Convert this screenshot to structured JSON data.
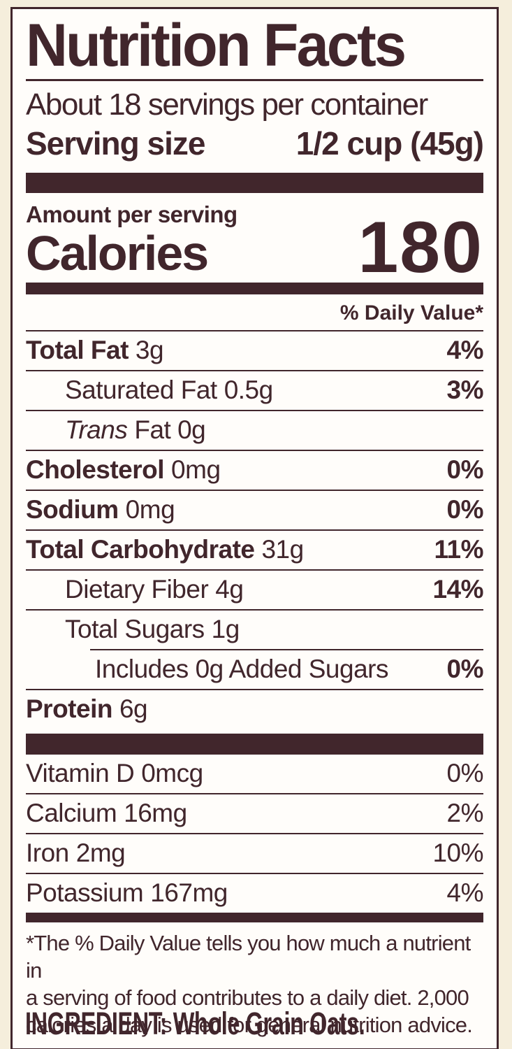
{
  "colors": {
    "page_bg": "#f5eedc",
    "label_bg": "#fffdfa",
    "ink": "#41262c"
  },
  "label": {
    "title": "Nutrition Facts",
    "servings_per_container": "About 18 servings per container",
    "serving_size": {
      "label": "Serving size",
      "value": "1/2 cup (45g)"
    },
    "amount_per_serving": "Amount per serving",
    "calories": {
      "label": "Calories",
      "value": "180"
    },
    "daily_value_header": "% Daily Value*",
    "nutrients": [
      {
        "name": "Total Fat",
        "amount": "3g",
        "dv": "4%"
      },
      {
        "name": "Saturated Fat",
        "amount": "0.5g",
        "dv": "3%"
      },
      {
        "name": "Trans",
        "amount": "Fat 0g",
        "dv": ""
      },
      {
        "name": "Cholesterol",
        "amount": "0mg",
        "dv": "0%"
      },
      {
        "name": "Sodium",
        "amount": "0mg",
        "dv": "0%"
      },
      {
        "name": "Total Carbohydrate",
        "amount": "31g",
        "dv": "11%"
      },
      {
        "name": "Dietary Fiber",
        "amount": "4g",
        "dv": "14%"
      },
      {
        "name": "Total Sugars",
        "amount": "1g",
        "dv": ""
      },
      {
        "name": "Includes 0g Added Sugars",
        "amount": "",
        "dv": "0%"
      },
      {
        "name": "Protein",
        "amount": "6g",
        "dv": ""
      }
    ],
    "vitamins": [
      {
        "name": "Vitamin D",
        "amount": "0mcg",
        "dv": "0%"
      },
      {
        "name": "Calcium",
        "amount": "16mg",
        "dv": "2%"
      },
      {
        "name": "Iron",
        "amount": "2mg",
        "dv": "10%"
      },
      {
        "name": "Potassium",
        "amount": "167mg",
        "dv": "4%"
      }
    ],
    "footnote_lines": [
      "*The % Daily Value tells you how much a nutrient in",
      "a serving of food contributes to a daily diet. 2,000",
      "calories a day is used for general nutrition advice."
    ]
  },
  "ingredient_statement": "INGREDIENT: Whole Grain Oats."
}
